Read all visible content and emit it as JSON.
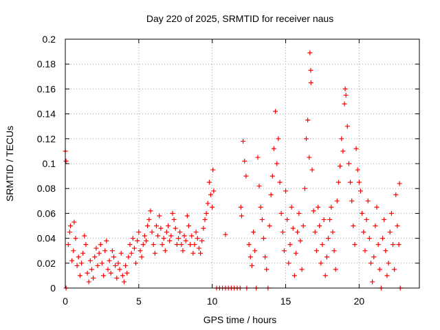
{
  "chart_data": {
    "type": "scatter",
    "title": "Day 220 of 2025, SRMTID for receiver naus",
    "xlabel": "GPS time / hours",
    "ylabel": "SRMTID / TECUs",
    "xlim": [
      0,
      24.1
    ],
    "ylim": [
      0,
      0.2
    ],
    "grid": true,
    "marker": "plus",
    "color": "#ff0000",
    "x_ticks": [
      {
        "value": 0,
        "label": "0"
      },
      {
        "value": 5,
        "label": "5"
      },
      {
        "value": 10,
        "label": "10"
      },
      {
        "value": 15,
        "label": "15"
      },
      {
        "value": 20,
        "label": "20"
      }
    ],
    "y_ticks": [
      {
        "value": 0,
        "label": "0"
      },
      {
        "value": 0.02,
        "label": "0.02"
      },
      {
        "value": 0.04,
        "label": "0.04"
      },
      {
        "value": 0.06,
        "label": "0.06"
      },
      {
        "value": 0.08,
        "label": "0.08"
      },
      {
        "value": 0.1,
        "label": "0.1"
      },
      {
        "value": 0.12,
        "label": "0.12"
      },
      {
        "value": 0.14,
        "label": "0.14"
      },
      {
        "value": 0.16,
        "label": "0.16"
      },
      {
        "value": 0.18,
        "label": "0.18"
      },
      {
        "value": 0.2,
        "label": "0.2"
      }
    ],
    "series": [
      {
        "name": "SRMTID",
        "points": [
          [
            0.0,
            0.11
          ],
          [
            0.05,
            0.102
          ],
          [
            0.05,
            0.0
          ],
          [
            0.2,
            0.035
          ],
          [
            0.3,
            0.045
          ],
          [
            0.35,
            0.05
          ],
          [
            0.45,
            0.022
          ],
          [
            0.55,
            0.03
          ],
          [
            0.6,
            0.053
          ],
          [
            0.7,
            0.04
          ],
          [
            0.8,
            0.018
          ],
          [
            0.9,
            0.025
          ],
          [
            1.0,
            0.01
          ],
          [
            1.1,
            0.02
          ],
          [
            1.2,
            0.028
          ],
          [
            1.3,
            0.042
          ],
          [
            1.4,
            0.035
          ],
          [
            1.5,
            0.012
          ],
          [
            1.6,
            0.005
          ],
          [
            1.7,
            0.022
          ],
          [
            1.8,
            0.015
          ],
          [
            1.9,
            0.008
          ],
          [
            2.0,
            0.025
          ],
          [
            2.1,
            0.032
          ],
          [
            2.2,
            0.018
          ],
          [
            2.3,
            0.028
          ],
          [
            2.4,
            0.035
          ],
          [
            2.5,
            0.02
          ],
          [
            2.6,
            0.01
          ],
          [
            2.7,
            0.03
          ],
          [
            2.8,
            0.038
          ],
          [
            2.9,
            0.015
          ],
          [
            3.0,
            0.022
          ],
          [
            3.1,
            0.012
          ],
          [
            3.2,
            0.03
          ],
          [
            3.3,
            0.025
          ],
          [
            3.4,
            0.018
          ],
          [
            3.5,
            0.008
          ],
          [
            3.6,
            0.02
          ],
          [
            3.7,
            0.015
          ],
          [
            3.8,
            0.028
          ],
          [
            3.9,
            0.01
          ],
          [
            4.0,
            0.005
          ],
          [
            4.1,
            0.018
          ],
          [
            4.2,
            0.012
          ],
          [
            4.3,
            0.025
          ],
          [
            4.4,
            0.035
          ],
          [
            4.5,
            0.028
          ],
          [
            4.6,
            0.04
          ],
          [
            4.7,
            0.032
          ],
          [
            4.8,
            0.02
          ],
          [
            4.9,
            0.038
          ],
          [
            5.0,
            0.045
          ],
          [
            5.1,
            0.03
          ],
          [
            5.2,
            0.025
          ],
          [
            5.3,
            0.035
          ],
          [
            5.4,
            0.042
          ],
          [
            5.5,
            0.038
          ],
          [
            5.6,
            0.05
          ],
          [
            5.7,
            0.055
          ],
          [
            5.8,
            0.062
          ],
          [
            5.9,
            0.045
          ],
          [
            6.0,
            0.035
          ],
          [
            6.1,
            0.028
          ],
          [
            6.2,
            0.05
          ],
          [
            6.3,
            0.042
          ],
          [
            6.4,
            0.058
          ],
          [
            6.5,
            0.048
          ],
          [
            6.6,
            0.035
          ],
          [
            6.7,
            0.04
          ],
          [
            6.8,
            0.03
          ],
          [
            6.9,
            0.045
          ],
          [
            7.0,
            0.05
          ],
          [
            7.1,
            0.038
          ],
          [
            7.2,
            0.042
          ],
          [
            7.3,
            0.06
          ],
          [
            7.4,
            0.055
          ],
          [
            7.5,
            0.048
          ],
          [
            7.6,
            0.035
          ],
          [
            7.7,
            0.04
          ],
          [
            7.8,
            0.045
          ],
          [
            7.9,
            0.035
          ],
          [
            8.0,
            0.03
          ],
          [
            8.1,
            0.042
          ],
          [
            8.2,
            0.038
          ],
          [
            8.3,
            0.058
          ],
          [
            8.4,
            0.05
          ],
          [
            8.5,
            0.035
          ],
          [
            8.6,
            0.042
          ],
          [
            8.7,
            0.028
          ],
          [
            8.8,
            0.035
          ],
          [
            8.9,
            0.045
          ],
          [
            9.0,
            0.04
          ],
          [
            9.1,
            0.032
          ],
          [
            9.2,
            0.028
          ],
          [
            9.3,
            0.038
          ],
          [
            9.4,
            0.048
          ],
          [
            9.5,
            0.055
          ],
          [
            9.6,
            0.06
          ],
          [
            9.7,
            0.068
          ],
          [
            9.8,
            0.085
          ],
          [
            9.9,
            0.075
          ],
          [
            10.0,
            0.065
          ],
          [
            10.05,
            0.095
          ],
          [
            10.1,
            0.078
          ],
          [
            10.3,
            0.0
          ],
          [
            10.5,
            0.0
          ],
          [
            10.7,
            0.0
          ],
          [
            10.9,
            0.0
          ],
          [
            10.9,
            0.043
          ],
          [
            11.1,
            0.0
          ],
          [
            11.3,
            0.0
          ],
          [
            11.5,
            0.0
          ],
          [
            11.7,
            0.0
          ],
          [
            11.9,
            0.0
          ],
          [
            11.95,
            0.065
          ],
          [
            12.0,
            0.058
          ],
          [
            12.1,
            0.118
          ],
          [
            12.2,
            0.102
          ],
          [
            12.3,
            0.09
          ],
          [
            12.35,
            0.0
          ],
          [
            12.5,
            0.035
          ],
          [
            12.6,
            0.025
          ],
          [
            12.7,
            0.018
          ],
          [
            12.8,
            0.045
          ],
          [
            12.9,
            0.03
          ],
          [
            13.0,
            0.0
          ],
          [
            13.1,
            0.105
          ],
          [
            13.2,
            0.082
          ],
          [
            13.3,
            0.065
          ],
          [
            13.4,
            0.055
          ],
          [
            13.5,
            0.04
          ],
          [
            13.6,
            0.025
          ],
          [
            13.7,
            0.015
          ],
          [
            13.8,
            0.0
          ],
          [
            13.9,
            0.05
          ],
          [
            14.0,
            0.075
          ],
          [
            14.1,
            0.09
          ],
          [
            14.2,
            0.112
          ],
          [
            14.3,
            0.142
          ],
          [
            14.4,
            0.1
          ],
          [
            14.5,
            0.12
          ],
          [
            14.6,
            0.085
          ],
          [
            14.7,
            0.06
          ],
          [
            14.8,
            0.045
          ],
          [
            14.9,
            0.03
          ],
          [
            15.0,
            0.078
          ],
          [
            15.1,
            0.055
          ],
          [
            15.2,
            0.02
          ],
          [
            15.3,
            0.035
          ],
          [
            15.4,
            0.065
          ],
          [
            15.5,
            0.048
          ],
          [
            15.6,
            0.01
          ],
          [
            15.7,
            0.028
          ],
          [
            15.8,
            0.045
          ],
          [
            15.9,
            0.06
          ],
          [
            16.0,
            0.038
          ],
          [
            16.1,
            0.015
          ],
          [
            16.2,
            0.05
          ],
          [
            16.3,
            0.08
          ],
          [
            16.4,
            0.12
          ],
          [
            16.5,
            0.135
          ],
          [
            16.6,
            0.105
          ],
          [
            16.65,
            0.189
          ],
          [
            16.7,
            0.175
          ],
          [
            16.72,
            0.165
          ],
          [
            16.8,
            0.095
          ],
          [
            16.9,
            0.062
          ],
          [
            17.0,
            0.045
          ],
          [
            17.1,
            0.03
          ],
          [
            17.2,
            0.065
          ],
          [
            17.3,
            0.05
          ],
          [
            17.4,
            0.02
          ],
          [
            17.5,
            0.035
          ],
          [
            17.6,
            0.055
          ],
          [
            17.7,
            0.01
          ],
          [
            17.8,
            0.025
          ],
          [
            17.9,
            0.04
          ],
          [
            18.0,
            0.055
          ],
          [
            18.1,
            0.065
          ],
          [
            18.2,
            0.045
          ],
          [
            18.3,
            0.03
          ],
          [
            18.4,
            0.015
          ],
          [
            18.5,
            0.07
          ],
          [
            18.6,
            0.085
          ],
          [
            18.7,
            0.098
          ],
          [
            18.8,
            0.12
          ],
          [
            18.9,
            0.11
          ],
          [
            19.0,
            0.148
          ],
          [
            19.05,
            0.16
          ],
          [
            19.1,
            0.155
          ],
          [
            19.2,
            0.13
          ],
          [
            19.3,
            0.1
          ],
          [
            19.4,
            0.085
          ],
          [
            19.5,
            0.07
          ],
          [
            19.6,
            0.05
          ],
          [
            19.7,
            0.035
          ],
          [
            19.8,
            0.112
          ],
          [
            19.9,
            0.095
          ],
          [
            20.0,
            0.085
          ],
          [
            20.1,
            0.078
          ],
          [
            20.2,
            0.06
          ],
          [
            20.3,
            0.045
          ],
          [
            20.4,
            0.03
          ],
          [
            20.5,
            0.055
          ],
          [
            20.6,
            0.07
          ],
          [
            20.7,
            0.04
          ],
          [
            20.8,
            0.02
          ],
          [
            20.9,
            0.005
          ],
          [
            21.0,
            0.025
          ],
          [
            21.1,
            0.05
          ],
          [
            21.2,
            0.065
          ],
          [
            21.3,
            0.035
          ],
          [
            21.4,
            0.015
          ],
          [
            21.5,
            0.0
          ],
          [
            21.6,
            0.04
          ],
          [
            21.7,
            0.055
          ],
          [
            21.8,
            0.03
          ],
          [
            21.9,
            0.01
          ],
          [
            22.0,
            0.02
          ],
          [
            22.1,
            0.045
          ],
          [
            22.2,
            0.06
          ],
          [
            22.3,
            0.035
          ],
          [
            22.4,
            0.015
          ],
          [
            22.5,
            0.075
          ],
          [
            22.6,
            0.05
          ],
          [
            22.7,
            0.035
          ],
          [
            22.75,
            0.084
          ],
          [
            22.8,
            0.0
          ]
        ]
      }
    ]
  }
}
